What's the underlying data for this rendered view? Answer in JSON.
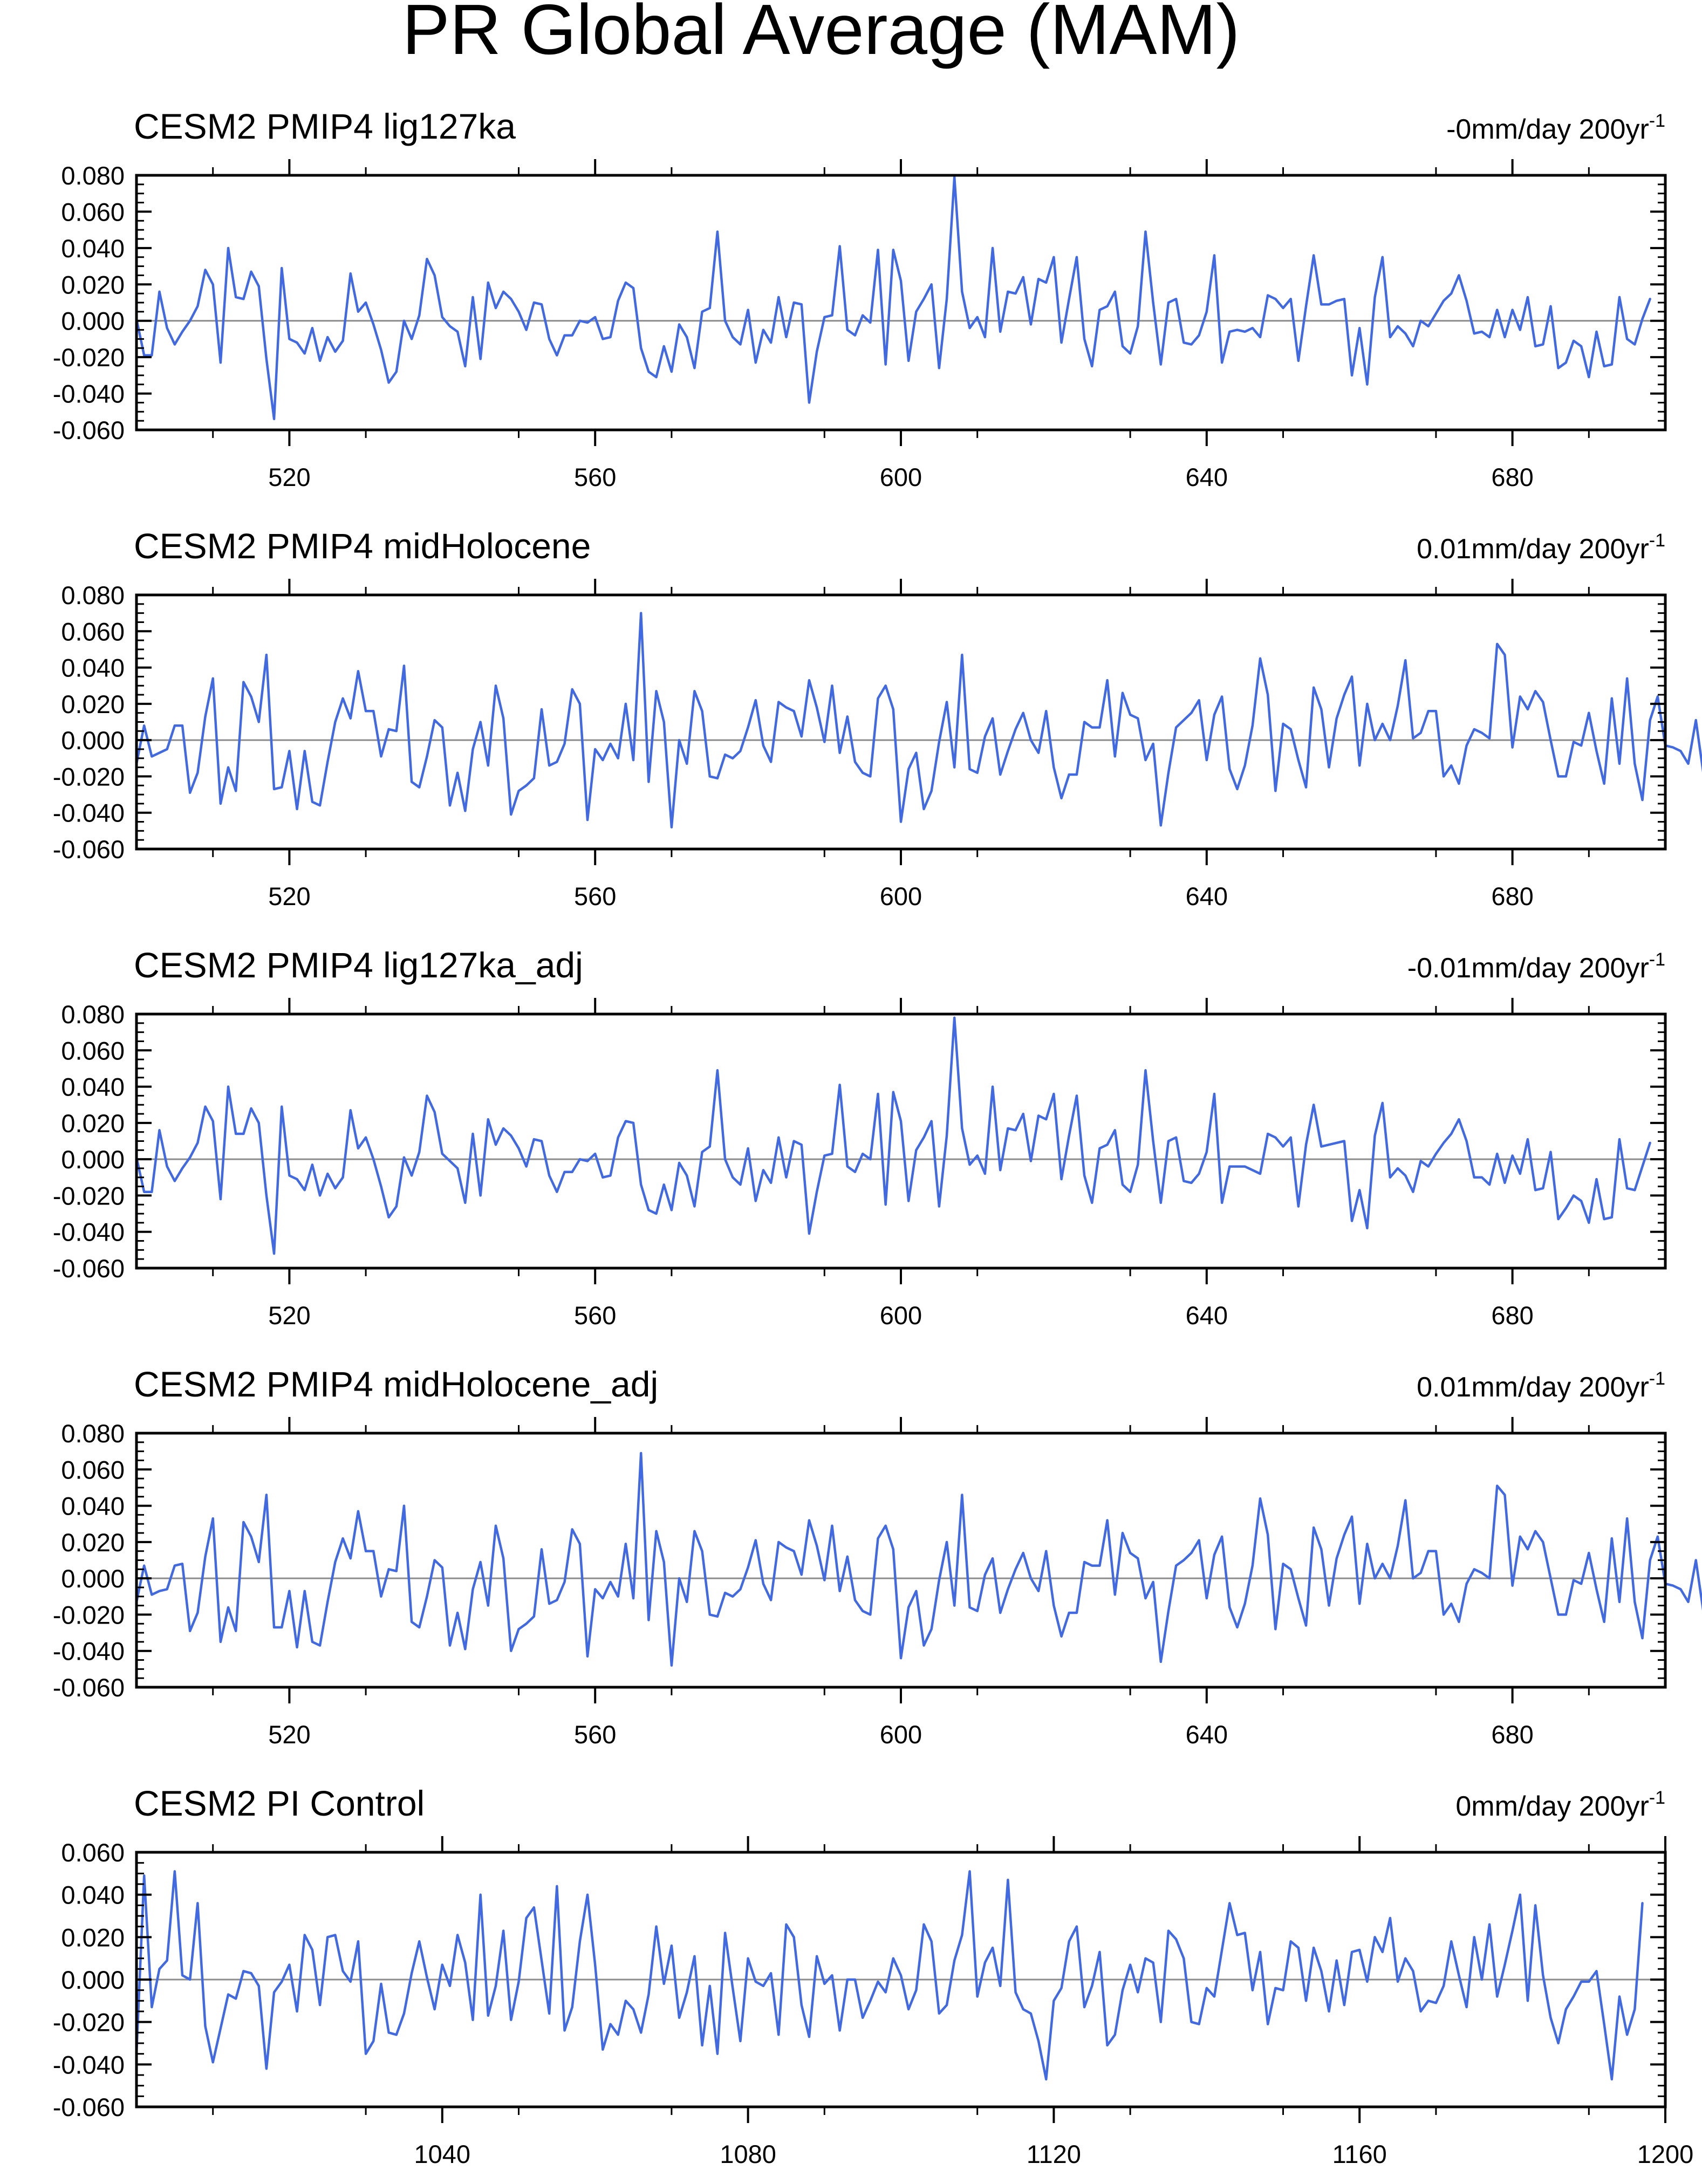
{
  "figure": {
    "title": "PR Global Average (MAM)",
    "line_color": "#4169e1",
    "zero_line_color": "#8c8c8c"
  },
  "chart_data": [
    {
      "type": "line",
      "title": "CESM2 PMIP4 lig127ka",
      "trend_text": "-0mm/day 200yr",
      "trend_exponent": "-1",
      "xlim": [
        500,
        700
      ],
      "ylim": [
        -0.06,
        0.08
      ],
      "xticks": [
        520,
        560,
        600,
        640,
        680
      ],
      "xtick_labels": [
        "520",
        "560",
        "600",
        "640",
        "680"
      ],
      "yticks": [
        -0.06,
        -0.04,
        -0.02,
        0.0,
        0.02,
        0.04,
        0.06,
        0.08
      ],
      "ytick_labels": [
        "-0.060",
        "-0.040",
        "-0.020",
        "0.000",
        "0.020",
        "0.040",
        "0.060",
        "0.080"
      ],
      "x_start": 500,
      "values": [
        0.001,
        -0.019,
        -0.019,
        0.016,
        -0.004,
        -0.013,
        -0.006,
        0.0,
        0.008,
        0.028,
        0.02,
        -0.023,
        0.04,
        0.013,
        0.012,
        0.027,
        0.019,
        -0.021,
        -0.054,
        0.029,
        -0.01,
        -0.012,
        -0.018,
        -0.004,
        -0.022,
        -0.009,
        -0.017,
        -0.011,
        0.026,
        0.005,
        0.01,
        -0.002,
        -0.016,
        -0.034,
        -0.028,
        0.0,
        -0.01,
        0.003,
        0.034,
        0.025,
        0.002,
        -0.003,
        -0.006,
        -0.025,
        0.013,
        -0.021,
        0.021,
        0.007,
        0.016,
        0.012,
        0.005,
        -0.005,
        0.01,
        0.009,
        -0.01,
        -0.019,
        -0.008,
        -0.008,
        -0.0,
        -0.001,
        0.002,
        -0.01,
        -0.009,
        0.011,
        0.021,
        0.018,
        -0.015,
        -0.028,
        -0.031,
        -0.014,
        -0.028,
        -0.002,
        -0.009,
        -0.026,
        0.005,
        0.007,
        0.049,
        0.0,
        -0.009,
        -0.013,
        0.006,
        -0.023,
        -0.005,
        -0.012,
        0.013,
        -0.009,
        0.01,
        0.009,
        -0.045,
        -0.017,
        0.002,
        0.003,
        0.041,
        -0.005,
        -0.008,
        0.003,
        -0.001,
        0.039,
        -0.024,
        0.039,
        0.022,
        -0.022,
        0.005,
        0.012,
        0.02,
        -0.026,
        0.012,
        0.079,
        0.016,
        -0.004,
        0.002,
        -0.009,
        0.04,
        -0.006,
        0.016,
        0.015,
        0.024,
        -0.002,
        0.023,
        0.021,
        0.035,
        -0.012,
        0.012,
        0.035,
        -0.01,
        -0.025,
        0.006,
        0.008,
        0.016,
        -0.014,
        -0.018,
        -0.003,
        0.049,
        0.01,
        -0.024,
        0.01,
        0.012,
        -0.012,
        -0.013,
        -0.008,
        0.005,
        0.036,
        -0.023,
        -0.006,
        -0.005,
        -0.006,
        -0.004,
        -0.009,
        0.014,
        0.012,
        0.007,
        0.012,
        -0.022,
        0.008,
        0.036,
        0.009,
        0.009,
        0.011,
        0.012,
        -0.03,
        -0.004,
        -0.035,
        0.013,
        0.035,
        -0.009,
        -0.003,
        -0.007,
        -0.014,
        0.0,
        -0.003,
        0.004,
        0.011,
        0.015,
        0.025,
        0.011,
        -0.007,
        -0.006,
        -0.009,
        0.006,
        -0.009,
        0.006,
        -0.005,
        0.013,
        -0.014,
        -0.013,
        0.008,
        -0.026,
        -0.023,
        -0.011,
        -0.014,
        -0.031,
        -0.006,
        -0.025,
        -0.024,
        0.013,
        -0.01,
        -0.013,
        0.001,
        0.012
      ]
    },
    {
      "type": "line",
      "title": "CESM2 PMIP4 midHolocene",
      "trend_text": "0.01mm/day 200yr",
      "trend_exponent": "-1",
      "xlim": [
        500,
        700
      ],
      "ylim": [
        -0.06,
        0.08
      ],
      "xticks": [
        520,
        560,
        600,
        640,
        680
      ],
      "xtick_labels": [
        "520",
        "560",
        "600",
        "640",
        "680"
      ],
      "yticks": [
        -0.06,
        -0.04,
        -0.02,
        0.0,
        0.02,
        0.04,
        0.06,
        0.08
      ],
      "ytick_labels": [
        "-0.060",
        "-0.040",
        "-0.020",
        "0.000",
        "0.020",
        "0.040",
        "0.060",
        "0.080"
      ],
      "x_start": 500,
      "values": [
        -0.013,
        0.008,
        -0.009,
        -0.007,
        -0.005,
        0.008,
        0.008,
        -0.029,
        -0.018,
        0.013,
        0.034,
        -0.035,
        -0.015,
        -0.028,
        0.032,
        0.024,
        0.01,
        0.047,
        -0.027,
        -0.026,
        -0.006,
        -0.038,
        -0.006,
        -0.034,
        -0.036,
        -0.012,
        0.01,
        0.023,
        0.012,
        0.038,
        0.016,
        0.016,
        -0.009,
        0.006,
        0.005,
        0.041,
        -0.023,
        -0.026,
        -0.009,
        0.011,
        0.007,
        -0.036,
        -0.018,
        -0.039,
        -0.005,
        0.01,
        -0.014,
        0.03,
        0.012,
        -0.041,
        -0.028,
        -0.025,
        -0.021,
        0.017,
        -0.014,
        -0.012,
        -0.002,
        0.028,
        0.02,
        -0.044,
        -0.005,
        -0.011,
        -0.002,
        -0.01,
        0.02,
        -0.011,
        0.07,
        -0.023,
        0.027,
        0.01,
        -0.048,
        0.0,
        -0.013,
        0.027,
        0.016,
        -0.02,
        -0.021,
        -0.008,
        -0.01,
        -0.006,
        0.007,
        0.022,
        -0.003,
        -0.012,
        0.021,
        0.018,
        0.016,
        0.002,
        0.033,
        0.018,
        -0.001,
        0.03,
        -0.007,
        0.013,
        -0.012,
        -0.018,
        -0.02,
        0.023,
        0.03,
        0.017,
        -0.045,
        -0.016,
        -0.007,
        -0.038,
        -0.028,
        -0.001,
        0.021,
        -0.015,
        0.047,
        -0.016,
        -0.018,
        0.002,
        0.012,
        -0.019,
        -0.006,
        0.006,
        0.015,
        0.0,
        -0.007,
        0.016,
        -0.015,
        -0.032,
        -0.019,
        -0.019,
        0.01,
        0.007,
        0.007,
        0.033,
        -0.009,
        0.026,
        0.014,
        0.012,
        -0.011,
        -0.002,
        -0.047,
        -0.018,
        0.007,
        0.011,
        0.015,
        0.022,
        -0.011,
        0.014,
        0.024,
        -0.016,
        -0.027,
        -0.014,
        0.008,
        0.045,
        0.025,
        -0.028,
        0.009,
        0.006,
        -0.011,
        -0.026,
        0.029,
        0.017,
        -0.015,
        0.012,
        0.025,
        0.035,
        -0.014,
        0.02,
        0.0,
        0.009,
        0.0,
        0.019,
        0.044,
        0.001,
        0.004,
        0.016,
        0.016,
        -0.02,
        -0.014,
        -0.024,
        -0.003,
        0.006,
        0.004,
        0.001,
        0.053,
        0.047,
        -0.004,
        0.024,
        0.017,
        0.027,
        0.021,
        0.0,
        -0.02,
        -0.02,
        -0.001,
        -0.003,
        0.015,
        -0.006,
        -0.024,
        0.023,
        -0.013,
        0.034,
        -0.013,
        -0.033,
        0.011,
        0.024,
        -0.003,
        -0.004,
        -0.006,
        -0.013,
        0.011,
        -0.019,
        -0.006
      ]
    },
    {
      "type": "line",
      "title": "CESM2 PMIP4 lig127ka_adj",
      "trend_text": "-0.01mm/day 200yr",
      "trend_exponent": "-1",
      "xlim": [
        500,
        700
      ],
      "ylim": [
        -0.06,
        0.08
      ],
      "xticks": [
        520,
        560,
        600,
        640,
        680
      ],
      "xtick_labels": [
        "520",
        "560",
        "600",
        "640",
        "680"
      ],
      "yticks": [
        -0.06,
        -0.04,
        -0.02,
        0.0,
        0.02,
        0.04,
        0.06,
        0.08
      ],
      "ytick_labels": [
        "-0.060",
        "-0.040",
        "-0.020",
        "0.000",
        "0.020",
        "0.040",
        "0.060",
        "0.080"
      ],
      "x_start": 500,
      "values": [
        0.001,
        -0.018,
        -0.018,
        0.016,
        -0.004,
        -0.012,
        -0.005,
        0.001,
        0.009,
        0.029,
        0.021,
        -0.022,
        0.04,
        0.014,
        0.014,
        0.028,
        0.02,
        -0.02,
        -0.052,
        0.029,
        -0.009,
        -0.011,
        -0.017,
        -0.003,
        -0.02,
        -0.008,
        -0.016,
        -0.01,
        0.027,
        0.006,
        0.012,
        0.0,
        -0.015,
        -0.032,
        -0.026,
        0.001,
        -0.009,
        0.004,
        0.035,
        0.026,
        0.003,
        -0.001,
        -0.005,
        -0.024,
        0.014,
        -0.02,
        0.022,
        0.008,
        0.017,
        0.013,
        0.006,
        -0.004,
        0.011,
        0.01,
        -0.009,
        -0.018,
        -0.007,
        -0.007,
        0.0,
        -0.001,
        0.003,
        -0.01,
        -0.009,
        0.012,
        0.021,
        0.02,
        -0.014,
        -0.028,
        -0.03,
        -0.014,
        -0.028,
        -0.002,
        -0.009,
        -0.026,
        0.004,
        0.007,
        0.049,
        0.0,
        -0.01,
        -0.014,
        0.006,
        -0.023,
        -0.006,
        -0.013,
        0.012,
        -0.01,
        0.01,
        0.008,
        -0.041,
        -0.018,
        0.002,
        0.003,
        0.041,
        -0.004,
        -0.007,
        0.003,
        0.0,
        0.036,
        -0.025,
        0.037,
        0.021,
        -0.023,
        0.005,
        0.012,
        0.021,
        -0.026,
        0.013,
        0.078,
        0.017,
        -0.003,
        0.002,
        -0.008,
        0.04,
        -0.006,
        0.017,
        0.016,
        0.025,
        -0.001,
        0.024,
        0.022,
        0.036,
        -0.011,
        0.013,
        0.035,
        -0.009,
        -0.024,
        0.006,
        0.008,
        0.016,
        -0.014,
        -0.018,
        -0.003,
        0.049,
        0.01,
        -0.024,
        0.01,
        0.012,
        -0.012,
        -0.013,
        -0.008,
        0.004,
        0.036,
        -0.024,
        -0.004,
        -0.004,
        -0.004,
        -0.006,
        -0.008,
        0.014,
        0.012,
        0.007,
        0.012,
        -0.026,
        0.008,
        0.03,
        0.007,
        0.008,
        0.009,
        0.01,
        -0.034,
        -0.017,
        -0.038,
        0.013,
        0.031,
        -0.01,
        -0.005,
        -0.009,
        -0.018,
        -0.001,
        -0.004,
        0.003,
        0.009,
        0.014,
        0.022,
        0.01,
        -0.01,
        -0.01,
        -0.014,
        0.003,
        -0.013,
        0.002,
        -0.008,
        0.011,
        -0.017,
        -0.016,
        0.004,
        -0.033,
        -0.027,
        -0.02,
        -0.023,
        -0.035,
        -0.011,
        -0.033,
        -0.032,
        0.011,
        -0.016,
        -0.017,
        -0.004,
        0.009
      ]
    },
    {
      "type": "line",
      "title": "CESM2 PMIP4 midHolocene_adj",
      "trend_text": "0.01mm/day 200yr",
      "trend_exponent": "-1",
      "xlim": [
        500,
        700
      ],
      "ylim": [
        -0.06,
        0.08
      ],
      "xticks": [
        520,
        560,
        600,
        640,
        680
      ],
      "xtick_labels": [
        "520",
        "560",
        "600",
        "640",
        "680"
      ],
      "yticks": [
        -0.06,
        -0.04,
        -0.02,
        0.0,
        0.02,
        0.04,
        0.06,
        0.08
      ],
      "ytick_labels": [
        "-0.060",
        "-0.040",
        "-0.020",
        "0.000",
        "0.020",
        "0.040",
        "0.060",
        "0.080"
      ],
      "x_start": 500,
      "values": [
        -0.013,
        0.007,
        -0.009,
        -0.007,
        -0.006,
        0.007,
        0.008,
        -0.029,
        -0.019,
        0.012,
        0.033,
        -0.035,
        -0.016,
        -0.029,
        0.031,
        0.023,
        0.009,
        0.046,
        -0.027,
        -0.027,
        -0.007,
        -0.038,
        -0.007,
        -0.035,
        -0.037,
        -0.013,
        0.009,
        0.022,
        0.011,
        0.037,
        0.015,
        0.015,
        -0.01,
        0.005,
        0.004,
        0.04,
        -0.024,
        -0.027,
        -0.01,
        0.01,
        0.006,
        -0.037,
        -0.019,
        -0.039,
        -0.006,
        0.009,
        -0.015,
        0.029,
        0.011,
        -0.04,
        -0.028,
        -0.025,
        -0.021,
        0.016,
        -0.014,
        -0.012,
        -0.002,
        0.027,
        0.019,
        -0.043,
        -0.006,
        -0.011,
        -0.002,
        -0.01,
        0.019,
        -0.011,
        0.069,
        -0.023,
        0.026,
        0.009,
        -0.048,
        0.0,
        -0.013,
        0.026,
        0.015,
        -0.02,
        -0.021,
        -0.008,
        -0.01,
        -0.006,
        0.006,
        0.021,
        -0.003,
        -0.012,
        0.02,
        0.017,
        0.015,
        0.002,
        0.032,
        0.018,
        -0.001,
        0.029,
        -0.007,
        0.012,
        -0.012,
        -0.018,
        -0.02,
        0.022,
        0.029,
        0.016,
        -0.044,
        -0.016,
        -0.007,
        -0.037,
        -0.028,
        -0.001,
        0.02,
        -0.015,
        0.046,
        -0.016,
        -0.018,
        0.002,
        0.011,
        -0.019,
        -0.006,
        0.005,
        0.014,
        0.0,
        -0.007,
        0.015,
        -0.015,
        -0.032,
        -0.019,
        -0.019,
        0.009,
        0.007,
        0.007,
        0.032,
        -0.009,
        0.025,
        0.014,
        0.011,
        -0.011,
        -0.002,
        -0.046,
        -0.018,
        0.007,
        0.01,
        0.014,
        0.021,
        -0.011,
        0.013,
        0.023,
        -0.016,
        -0.027,
        -0.014,
        0.007,
        0.044,
        0.024,
        -0.028,
        0.008,
        0.005,
        -0.011,
        -0.026,
        0.028,
        0.016,
        -0.015,
        0.011,
        0.024,
        0.034,
        -0.014,
        0.019,
        0.0,
        0.008,
        0.0,
        0.018,
        0.043,
        0.0,
        0.003,
        0.015,
        0.015,
        -0.02,
        -0.014,
        -0.024,
        -0.003,
        0.005,
        0.003,
        0.0,
        0.051,
        0.046,
        -0.004,
        0.023,
        0.016,
        0.026,
        0.02,
        0.0,
        -0.02,
        -0.02,
        -0.001,
        -0.003,
        0.014,
        -0.006,
        -0.024,
        0.022,
        -0.013,
        0.033,
        -0.013,
        -0.033,
        0.01,
        0.023,
        -0.003,
        -0.004,
        -0.006,
        -0.013,
        0.01,
        -0.019,
        -0.006
      ]
    },
    {
      "type": "line",
      "title": "CESM2 PI Control",
      "trend_text": "0mm/day 200yr",
      "trend_exponent": "-1",
      "xlim": [
        1000,
        1200
      ],
      "ylim": [
        -0.06,
        0.06
      ],
      "xticks": [
        1040,
        1080,
        1120,
        1160,
        1200
      ],
      "xtick_labels": [
        "1040",
        "1080",
        "1120",
        "1160",
        "1200"
      ],
      "yticks": [
        -0.06,
        -0.04,
        -0.02,
        0.0,
        0.02,
        0.04,
        0.06
      ],
      "ytick_labels": [
        "-0.060",
        "-0.040",
        "-0.020",
        "0.000",
        "0.020",
        "0.040",
        "0.060"
      ],
      "x_start": 1000,
      "values": [
        -0.035,
        0.049,
        -0.013,
        0.005,
        0.009,
        0.051,
        0.002,
        0.0,
        0.036,
        -0.022,
        -0.039,
        -0.023,
        -0.007,
        -0.009,
        0.004,
        0.003,
        -0.003,
        -0.042,
        -0.006,
        -0.001,
        0.007,
        -0.015,
        0.021,
        0.014,
        -0.012,
        0.02,
        0.021,
        0.004,
        -0.001,
        0.018,
        -0.035,
        -0.029,
        -0.002,
        -0.025,
        -0.026,
        -0.016,
        0.003,
        0.018,
        0.001,
        -0.014,
        0.007,
        -0.003,
        0.021,
        0.008,
        -0.019,
        0.04,
        -0.017,
        -0.003,
        0.023,
        -0.019,
        -0.001,
        0.029,
        0.034,
        0.009,
        -0.016,
        0.044,
        -0.024,
        -0.013,
        0.018,
        0.04,
        0.007,
        -0.033,
        -0.021,
        -0.026,
        -0.01,
        -0.014,
        -0.025,
        -0.007,
        0.025,
        -0.002,
        0.016,
        -0.018,
        -0.006,
        0.011,
        -0.031,
        -0.003,
        -0.035,
        0.022,
        -0.004,
        -0.029,
        0.01,
        -0.001,
        -0.003,
        0.003,
        -0.026,
        0.026,
        0.02,
        -0.012,
        -0.027,
        0.011,
        -0.002,
        0.002,
        -0.024,
        0.0,
        0.0,
        -0.018,
        -0.01,
        -0.001,
        -0.006,
        0.01,
        0.002,
        -0.014,
        -0.005,
        0.026,
        0.018,
        -0.016,
        -0.012,
        0.009,
        0.021,
        0.051,
        -0.008,
        0.008,
        0.015,
        -0.003,
        0.047,
        -0.006,
        -0.014,
        -0.016,
        -0.029,
        -0.047,
        -0.01,
        -0.004,
        0.018,
        0.025,
        -0.013,
        -0.003,
        0.013,
        -0.031,
        -0.026,
        -0.005,
        0.007,
        -0.006,
        0.01,
        0.008,
        -0.02,
        0.023,
        0.019,
        0.01,
        -0.02,
        -0.021,
        -0.004,
        -0.008,
        0.014,
        0.036,
        0.021,
        0.022,
        -0.005,
        0.013,
        -0.021,
        -0.004,
        -0.005,
        0.018,
        0.015,
        -0.01,
        0.015,
        0.004,
        -0.015,
        0.009,
        -0.012,
        0.013,
        0.014,
        -0.001,
        0.02,
        0.013,
        0.029,
        -0.001,
        0.01,
        0.004,
        -0.015,
        -0.01,
        -0.011,
        -0.003,
        0.018,
        0.002,
        -0.013,
        0.02,
        0.0,
        0.026,
        -0.008,
        0.007,
        0.023,
        0.04,
        -0.01,
        0.035,
        0.002,
        -0.018,
        -0.03,
        -0.014,
        -0.008,
        -0.001,
        -0.001,
        0.004,
        -0.021,
        -0.047,
        -0.008,
        -0.026,
        -0.014,
        0.036
      ]
    }
  ]
}
